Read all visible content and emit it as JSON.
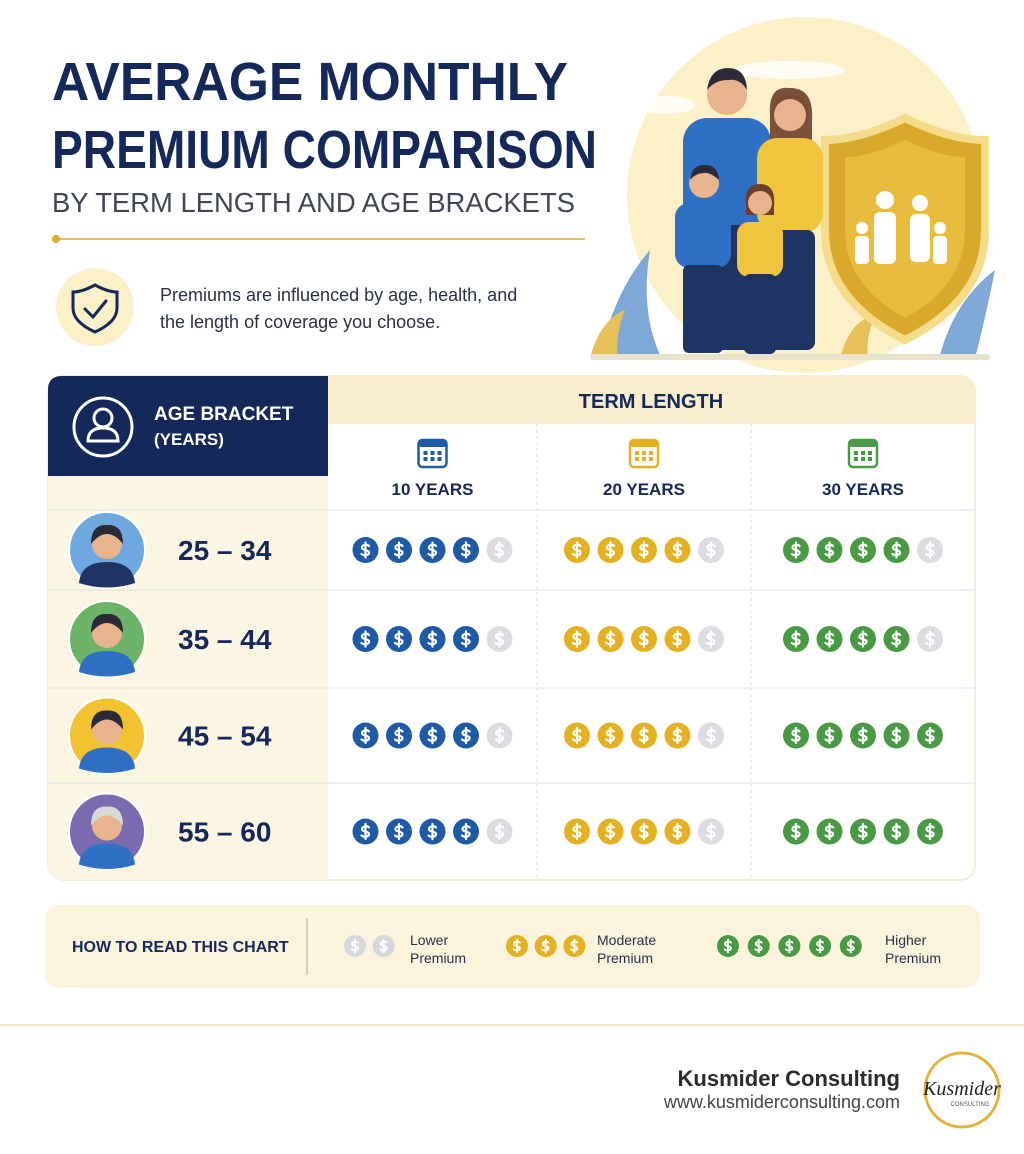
{
  "header": {
    "title_lines": [
      "AVERAGE MONTHLY",
      "PREMIUM COMPARISON"
    ],
    "subtitle": "BY TERM LENGTH AND AGE BRACKETS",
    "note": "Premiums are influenced by age, health, and the length of coverage you choose."
  },
  "table": {
    "corner_header": [
      "AGE BRACKET",
      "(YEARS)"
    ],
    "group_header": "TERM LENGTH",
    "coin_scale": 5,
    "columns": [
      {
        "label": "10 YEARS",
        "color": "#1f5aa6"
      },
      {
        "label": "20 YEARS",
        "color": "#e3b122"
      },
      {
        "label": "30 YEARS",
        "color": "#4a9a45"
      }
    ],
    "rows": [
      {
        "label": "25 – 34",
        "coins": [
          4,
          4,
          4
        ]
      },
      {
        "label": "35 – 44",
        "coins": [
          4,
          4,
          4
        ]
      },
      {
        "label": "45 – 54",
        "coins": [
          4,
          4,
          5
        ]
      },
      {
        "label": "55 – 60",
        "coins": [
          4,
          4,
          5
        ]
      }
    ]
  },
  "legend": {
    "title": "HOW TO READ THIS CHART",
    "items": [
      {
        "coins": 2,
        "color": "#d7d8dc",
        "label": "Lower Premium"
      },
      {
        "coins": 3,
        "color": "#e3b122",
        "label": "Moderate Premium"
      },
      {
        "coins": 5,
        "color": "#4a9a45",
        "label": "Higher Premium"
      }
    ]
  },
  "footer": {
    "company": "Kusmider Consulting",
    "url": "www.kusmiderconsulting.com",
    "logo_text": "Kusmider",
    "logo_subtext": "CONSULTING"
  }
}
